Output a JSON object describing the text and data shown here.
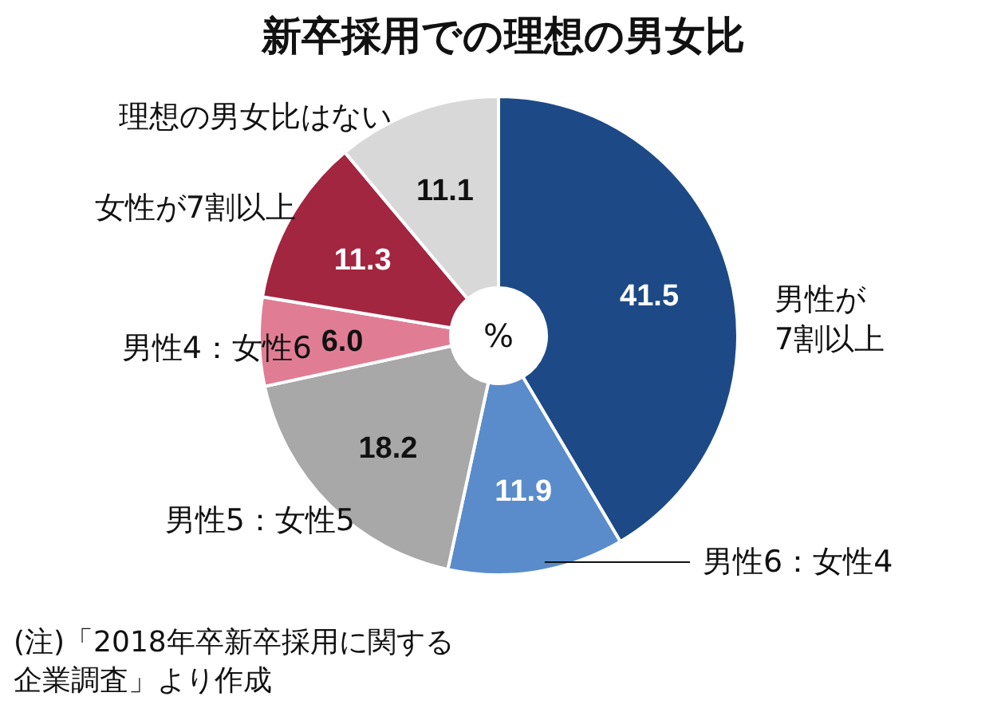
{
  "chart_data": {
    "type": "donut",
    "title": "新卒採用での理想の男女比",
    "categories": [
      "男性が\n7割以上",
      "男性6：女性4",
      "男性5：女性5",
      "男性4：女性6",
      "女性が7割以上",
      "理想の男女比はない"
    ],
    "values": [
      41.5,
      11.9,
      18.2,
      6.0,
      11.3,
      11.1
    ],
    "colors": [
      "#1d4a86",
      "#5a8ccc",
      "#a8a8a8",
      "#e07d95",
      "#a2263f",
      "#d8d8d8"
    ],
    "value_labels": [
      "41.5",
      "11.9",
      "18.2",
      "6.0",
      "11.3",
      "11.1"
    ],
    "annotations": [
      "%",
      "(注)「2018年卒新卒採用に関する",
      "企業調査」より作成"
    ]
  }
}
